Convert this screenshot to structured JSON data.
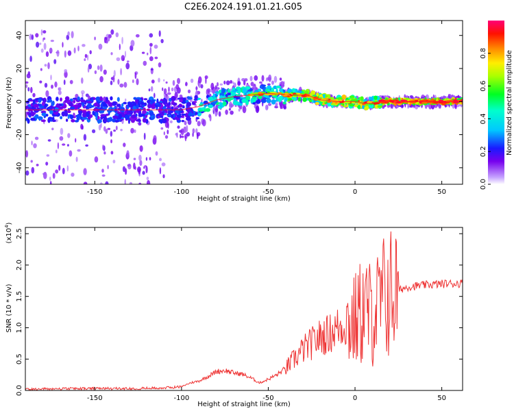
{
  "title": "C2E6.2024.191.01.21.G05",
  "chart_data": [
    {
      "type": "heatmap",
      "xlabel": "Height of straight line (km)",
      "ylabel": "Frequency (Hz)",
      "xlim": [
        -190,
        62
      ],
      "ylim": [
        -50,
        49
      ],
      "xticks": [
        -150,
        -100,
        -50,
        0,
        50
      ],
      "yticks": [
        -40,
        -20,
        0,
        20,
        40
      ],
      "ridge": {
        "x": [
          -190,
          -150,
          -120,
          -100,
          -90,
          -80,
          -70,
          -60,
          -50,
          -40,
          -30,
          -25,
          -20,
          -10,
          0,
          5,
          10,
          15,
          20,
          40,
          62
        ],
        "frequency": [
          -5,
          -5,
          -5,
          -5,
          -3,
          1,
          3,
          4,
          5,
          4,
          4,
          3,
          1,
          0,
          0,
          -1,
          -1,
          0,
          0,
          0,
          0
        ]
      },
      "colorbar": {
        "label": "Normalized spectral amplitude",
        "range": [
          0.0,
          1.0
        ],
        "ticks": [
          0.0,
          0.2,
          0.4,
          0.6,
          0.8
        ]
      }
    },
    {
      "type": "line",
      "xlabel": "Height of straight line (km)",
      "ylabel": "SNR (10 * v/v)",
      "scale_label": "(x10",
      "scale_exp": "4",
      "scale_close": ")",
      "xlim": [
        -190,
        62
      ],
      "ylim": [
        0.0,
        2.6
      ],
      "xticks": [
        -150,
        -100,
        -50,
        0,
        50
      ],
      "yticks": [
        0.0,
        0.5,
        1.0,
        1.5,
        2.0,
        2.5
      ],
      "color": "#ee3333",
      "series": [
        {
          "x": [
            -190,
            -160,
            -130,
            -110,
            -100,
            -95,
            -90,
            -85,
            -80,
            -75,
            -70,
            -65,
            -60,
            -55,
            -50,
            -45,
            -40,
            -35,
            -30,
            -25,
            -20,
            -15,
            -10,
            -5,
            0,
            5,
            10,
            15,
            17,
            20,
            25,
            30,
            40,
            50,
            62
          ],
          "values": [
            0.02,
            0.03,
            0.03,
            0.04,
            0.06,
            0.12,
            0.15,
            0.22,
            0.3,
            0.32,
            0.28,
            0.26,
            0.2,
            0.12,
            0.18,
            0.25,
            0.35,
            0.5,
            0.65,
            0.75,
            0.85,
            0.9,
            1.0,
            1.05,
            1.1,
            1.3,
            1.2,
            1.4,
            1.5,
            1.55,
            1.6,
            1.65,
            1.68,
            1.7,
            1.71
          ]
        }
      ]
    }
  ]
}
